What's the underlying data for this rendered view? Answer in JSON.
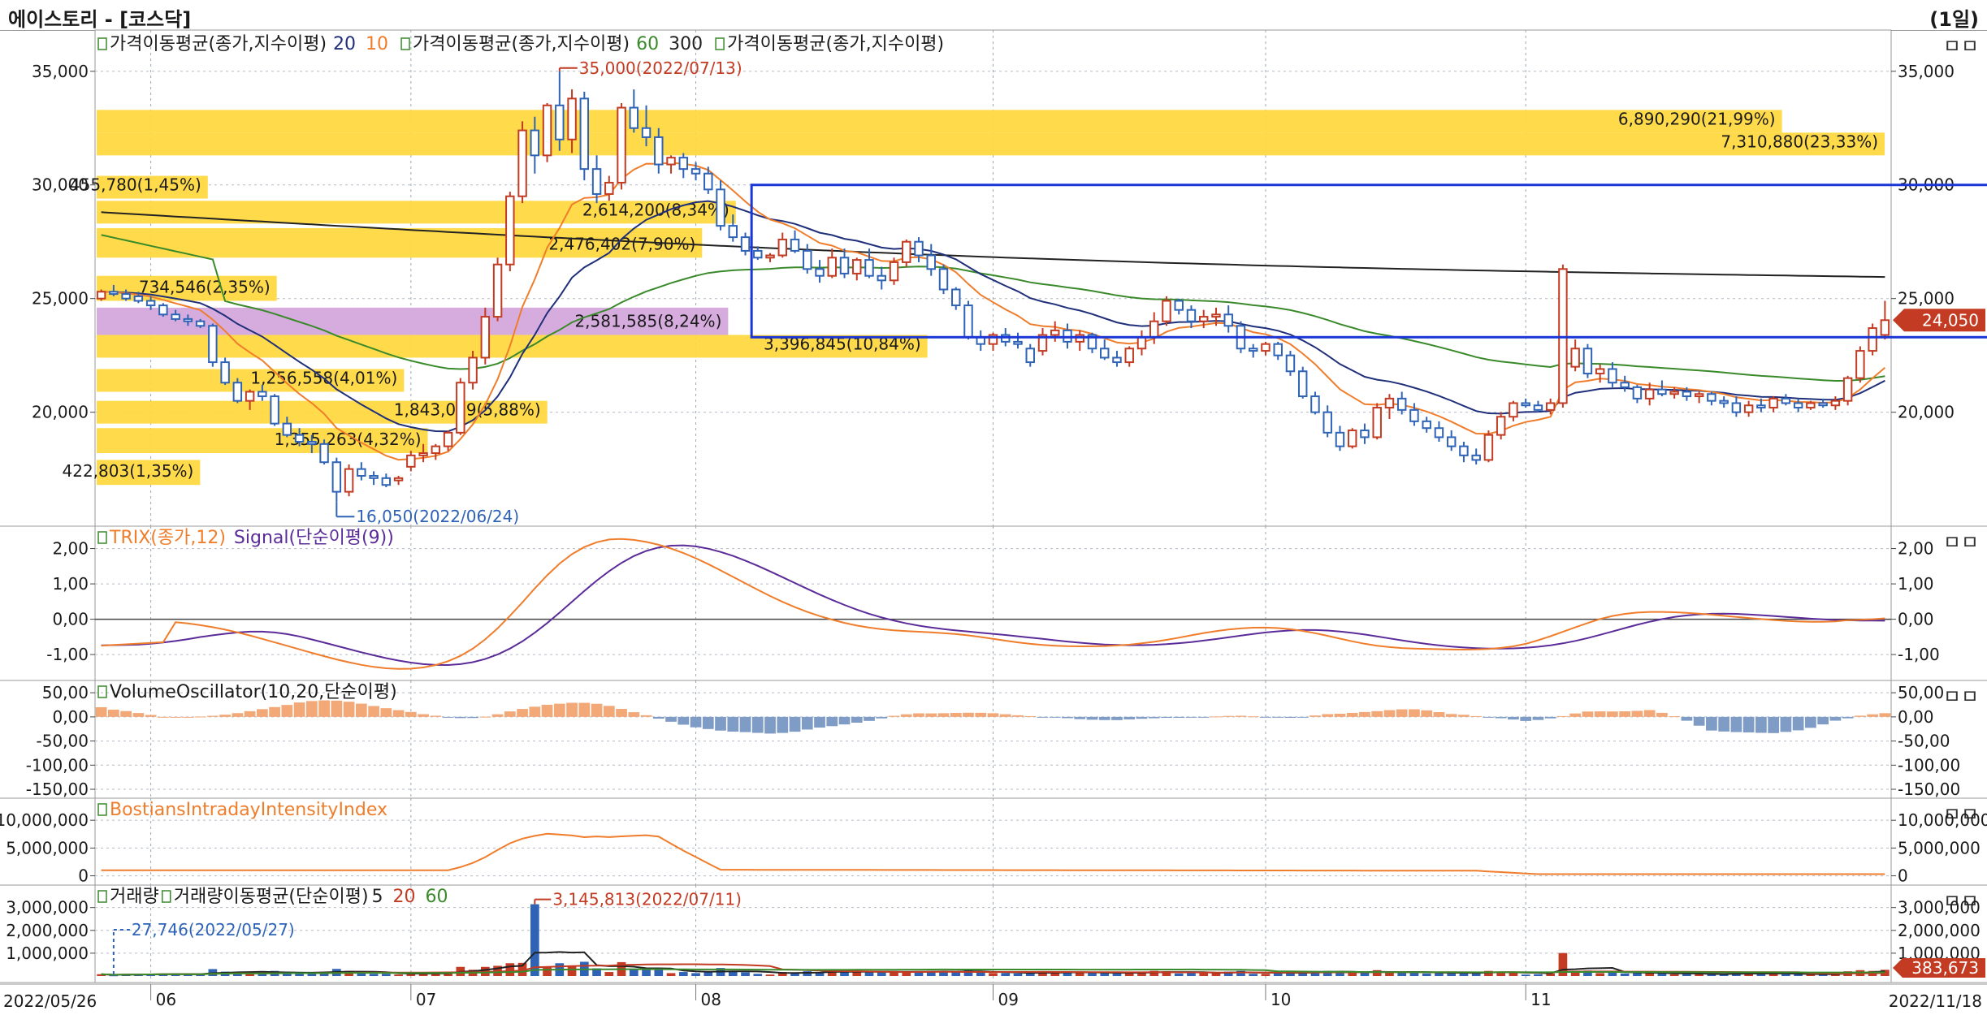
{
  "window": {
    "title": "에이스토리 - [코스닥]",
    "period": "(1일)"
  },
  "panel_controls": "ㅁㅁ",
  "colors": {
    "up": "#c23b22",
    "down": "#2f63b6",
    "ma20": "#1f2f7a",
    "ma10": "#ef7d2b",
    "ma60": "#3a8a2b",
    "ma300": "#222222",
    "trix": "#ef7d2b",
    "signal": "#5b2c99",
    "vo_pos": "#f3a877",
    "vo_neg": "#7f9cc6",
    "biii": "#ef7d2b",
    "profile": "#ffd840",
    "profile_hl": "#d4a8dc",
    "box": "#1a36d6",
    "label_bg": "#c23b22"
  },
  "chart_data": [
    {
      "type": "candlestick",
      "name": "price",
      "legend": [
        {
          "text": "가격이동평균(종가,지수이평)",
          "params": [
            {
              "text": "20",
              "color": "#1f2f7a"
            },
            {
              "text": "10",
              "color": "#ef7d2b"
            }
          ]
        },
        {
          "text": "가격이동평균(종가,지수이평)",
          "params": [
            {
              "text": "60",
              "color": "#3a8a2b"
            },
            {
              "text": "300",
              "color": "#222222"
            }
          ]
        },
        {
          "text": "가격이동평균(종가,지수이평)",
          "params": []
        }
      ],
      "yticks": [
        "35,000",
        "30,000",
        "25,000",
        "20,000"
      ],
      "yvalues": [
        35000,
        30000,
        25000,
        20000
      ],
      "ylim": [
        15200,
        36600
      ],
      "last_price": "24,050",
      "candles": [
        [
          25000,
          25400,
          24900,
          25300
        ],
        [
          25300,
          25600,
          25100,
          25200
        ],
        [
          25200,
          25400,
          24900,
          25000
        ],
        [
          25100,
          25300,
          24800,
          24900
        ],
        [
          24900,
          25100,
          24500,
          24700
        ],
        [
          24700,
          24800,
          24200,
          24300
        ],
        [
          24300,
          24500,
          24000,
          24100
        ],
        [
          24100,
          24300,
          23800,
          24000
        ],
        [
          24000,
          24100,
          23700,
          23800
        ],
        [
          23800,
          23900,
          22000,
          22200
        ],
        [
          22200,
          22400,
          21200,
          21300
        ],
        [
          21300,
          21500,
          20400,
          20500
        ],
        [
          20500,
          21000,
          20100,
          20900
        ],
        [
          20900,
          21200,
          20500,
          20700
        ],
        [
          20700,
          20800,
          19400,
          19500
        ],
        [
          19500,
          19800,
          18900,
          19000
        ],
        [
          19000,
          19300,
          18500,
          18700
        ],
        [
          18700,
          19000,
          18200,
          18600
        ],
        [
          18600,
          18800,
          17700,
          17800
        ],
        [
          17800,
          18000,
          16050,
          16500
        ],
        [
          16500,
          17700,
          16300,
          17500
        ],
        [
          17500,
          17800,
          17000,
          17200
        ],
        [
          17200,
          17400,
          16800,
          17100
        ],
        [
          17100,
          17300,
          16700,
          16800
        ],
        [
          17000,
          17200,
          16800,
          17100
        ],
        [
          17600,
          18300,
          17400,
          18100
        ],
        [
          18100,
          18600,
          17800,
          18200
        ],
        [
          18200,
          18600,
          17900,
          18500
        ],
        [
          18500,
          19200,
          18300,
          19100
        ],
        [
          19100,
          21500,
          19000,
          21300
        ],
        [
          21300,
          22700,
          21000,
          22400
        ],
        [
          22400,
          24600,
          22100,
          24200
        ],
        [
          24200,
          26800,
          24000,
          26500
        ],
        [
          26500,
          29700,
          26200,
          29500
        ],
        [
          29500,
          32800,
          29200,
          32400
        ],
        [
          32400,
          33000,
          30500,
          31300
        ],
        [
          31300,
          33600,
          31000,
          33500
        ],
        [
          33500,
          35000,
          31500,
          32000
        ],
        [
          32000,
          34200,
          31400,
          33800
        ],
        [
          33800,
          34100,
          30200,
          30700
        ],
        [
          30700,
          31300,
          29200,
          29600
        ],
        [
          29600,
          30400,
          29300,
          30100
        ],
        [
          30100,
          33600,
          29800,
          33400
        ],
        [
          33400,
          34200,
          32300,
          32500
        ],
        [
          32500,
          33500,
          31700,
          32100
        ],
        [
          32100,
          32500,
          30500,
          30900
        ],
        [
          30900,
          31300,
          30500,
          31200
        ],
        [
          31200,
          31400,
          30300,
          30700
        ],
        [
          30700,
          31000,
          30200,
          30500
        ],
        [
          30500,
          30800,
          29600,
          29800
        ],
        [
          29800,
          30200,
          28000,
          28200
        ],
        [
          28200,
          28700,
          27500,
          27700
        ],
        [
          27700,
          27900,
          26900,
          27100
        ],
        [
          27100,
          27300,
          26700,
          26800
        ],
        [
          26800,
          27000,
          26600,
          26900
        ],
        [
          26900,
          27900,
          26800,
          27600
        ],
        [
          27600,
          28000,
          27000,
          27100
        ],
        [
          27100,
          27400,
          26100,
          26300
        ],
        [
          26300,
          26700,
          25700,
          26000
        ],
        [
          26000,
          27200,
          25900,
          26800
        ],
        [
          26800,
          27200,
          25900,
          26100
        ],
        [
          26100,
          26800,
          25800,
          26700
        ],
        [
          26700,
          27200,
          25900,
          26000
        ],
        [
          26000,
          26400,
          25400,
          25800
        ],
        [
          25800,
          26800,
          25600,
          26600
        ],
        [
          26600,
          27600,
          26400,
          27500
        ],
        [
          27500,
          27700,
          26600,
          26900
        ],
        [
          26900,
          27400,
          26000,
          26300
        ],
        [
          26300,
          26500,
          25200,
          25400
        ],
        [
          25400,
          25500,
          24500,
          24700
        ],
        [
          24700,
          24900,
          23200,
          23300
        ],
        [
          23300,
          23600,
          22700,
          23000
        ],
        [
          23000,
          23500,
          22700,
          23400
        ],
        [
          23400,
          23700,
          22900,
          23100
        ],
        [
          23100,
          23500,
          22800,
          23000
        ],
        [
          22800,
          23000,
          22000,
          22200
        ],
        [
          22700,
          23700,
          22500,
          23400
        ],
        [
          23400,
          24000,
          23100,
          23600
        ],
        [
          23600,
          23900,
          22800,
          23100
        ],
        [
          23100,
          23600,
          22700,
          23400
        ],
        [
          23400,
          23500,
          22600,
          22800
        ],
        [
          22800,
          23200,
          22300,
          22400
        ],
        [
          22400,
          22700,
          22000,
          22200
        ],
        [
          22200,
          22900,
          22000,
          22800
        ],
        [
          22800,
          23600,
          22500,
          23300
        ],
        [
          23300,
          24400,
          23000,
          24000
        ],
        [
          24000,
          25100,
          23800,
          24900
        ],
        [
          24900,
          25000,
          24300,
          24500
        ],
        [
          24500,
          24700,
          23700,
          24000
        ],
        [
          24000,
          24500,
          23700,
          24200
        ],
        [
          24200,
          24600,
          23800,
          24300
        ],
        [
          24300,
          24700,
          23500,
          23800
        ],
        [
          23800,
          24000,
          22600,
          22800
        ],
        [
          22800,
          23000,
          22400,
          22700
        ],
        [
          22700,
          23100,
          22500,
          23000
        ],
        [
          23000,
          23100,
          22300,
          22500
        ],
        [
          22500,
          22700,
          21600,
          21800
        ],
        [
          21800,
          22000,
          20600,
          20700
        ],
        [
          20700,
          20900,
          19900,
          20000
        ],
        [
          20000,
          20300,
          18900,
          19100
        ],
        [
          19100,
          19400,
          18300,
          18500
        ],
        [
          18500,
          19300,
          18400,
          19200
        ],
        [
          19200,
          19500,
          18600,
          18900
        ],
        [
          18900,
          20400,
          18800,
          20200
        ],
        [
          20200,
          20800,
          19700,
          20600
        ],
        [
          20600,
          20900,
          19900,
          20100
        ],
        [
          20100,
          20400,
          19400,
          19600
        ],
        [
          19600,
          19800,
          19100,
          19300
        ],
        [
          19300,
          19600,
          18700,
          18900
        ],
        [
          18900,
          19200,
          18300,
          18500
        ],
        [
          18500,
          18700,
          17800,
          18100
        ],
        [
          18100,
          18400,
          17700,
          17900
        ],
        [
          17900,
          19200,
          17800,
          19000
        ],
        [
          19000,
          20000,
          18800,
          19800
        ],
        [
          19800,
          20500,
          19600,
          20400
        ],
        [
          20400,
          20600,
          20200,
          20300
        ],
        [
          20300,
          20500,
          20000,
          20100
        ],
        [
          20100,
          20600,
          19900,
          20400
        ],
        [
          20400,
          26500,
          20200,
          26300
        ],
        [
          22000,
          23200,
          21800,
          22800
        ],
        [
          22800,
          23000,
          21500,
          21700
        ],
        [
          21700,
          22100,
          21300,
          21900
        ],
        [
          21900,
          22200,
          21100,
          21300
        ],
        [
          21300,
          21600,
          20900,
          21100
        ],
        [
          21100,
          21200,
          20400,
          20600
        ],
        [
          20600,
          21300,
          20300,
          21000
        ],
        [
          21000,
          21400,
          20700,
          20800
        ],
        [
          20800,
          21100,
          20600,
          20900
        ],
        [
          20900,
          21100,
          20500,
          20700
        ],
        [
          20700,
          20900,
          20400,
          20800
        ],
        [
          20800,
          20900,
          20300,
          20500
        ],
        [
          20500,
          20700,
          20200,
          20400
        ],
        [
          20400,
          20700,
          19800,
          20000
        ],
        [
          20000,
          20500,
          19800,
          20300
        ],
        [
          20300,
          20600,
          20000,
          20200
        ],
        [
          20200,
          20700,
          20000,
          20600
        ],
        [
          20600,
          20800,
          20300,
          20400
        ],
        [
          20400,
          20600,
          20000,
          20200
        ],
        [
          20200,
          20500,
          20100,
          20400
        ],
        [
          20400,
          20600,
          20200,
          20300
        ],
        [
          20300,
          20700,
          20100,
          20500
        ],
        [
          20500,
          21600,
          20300,
          21500
        ],
        [
          21500,
          22900,
          21300,
          22700
        ],
        [
          22700,
          23900,
          22500,
          23700
        ],
        [
          23400,
          24900,
          23200,
          24050
        ]
      ],
      "annotations": [
        {
          "text": "35,000(2022/07/13)",
          "index": 37,
          "value": 35000,
          "kind": "high"
        },
        {
          "text": "16,050(2022/06/24)",
          "index": 19,
          "value": 16050,
          "kind": "low"
        }
      ],
      "volume_profile": [
        {
          "low": 32300,
          "high": 33300,
          "text": "6,890,290(21,99%)",
          "pct": 21.99
        },
        {
          "low": 31300,
          "high": 32300,
          "text": "7,310,880(23,33%)",
          "pct": 23.33
        },
        {
          "low": 29400,
          "high": 30400,
          "text": "455,780(1,45%)",
          "pct": 1.45
        },
        {
          "low": 28300,
          "high": 29300,
          "text": "2,614,200(8,34%)",
          "pct": 8.34
        },
        {
          "low": 26800,
          "high": 28100,
          "text": "2,476,402(7,90%)",
          "pct": 7.9
        },
        {
          "low": 24900,
          "high": 26000,
          "text": "734,546(2,35%)",
          "pct": 2.35
        },
        {
          "low": 23400,
          "high": 24600,
          "text": "2,581,585(8,24%)",
          "pct": 8.24,
          "highlight": true
        },
        {
          "low": 22400,
          "high": 23400,
          "text": "3,396,845(10,84%)",
          "pct": 10.84
        },
        {
          "low": 20900,
          "high": 21900,
          "text": "1,256,558(4,01%)",
          "pct": 4.01
        },
        {
          "low": 19500,
          "high": 20500,
          "text": "1,843,059(5,88%)",
          "pct": 5.88
        },
        {
          "low": 18200,
          "high": 19300,
          "text": "1,355,263(4,32%)",
          "pct": 4.32
        },
        {
          "low": 16800,
          "high": 17900,
          "text": "422,803(1,35%)",
          "pct": 1.35
        }
      ],
      "box": {
        "start_index": 53,
        "end_index": 152,
        "low": 23300,
        "high": 30000
      }
    },
    {
      "type": "line",
      "name": "trix",
      "legend": [
        {
          "text": "TRIX(종가,12)",
          "color": "#ef7d2b"
        },
        {
          "text": "Signal(단순이평(9))",
          "color": "#5b2c99"
        }
      ],
      "yticks": [
        "2,00",
        "1,00",
        "0,00",
        "-1,00"
      ],
      "yvalues": [
        2,
        1,
        0,
        -1
      ],
      "ylim": [
        -1.55,
        2.45
      ]
    },
    {
      "type": "bar",
      "name": "volume_oscillator",
      "legend": [
        {
          "text": "VolumeOscillator(10,20,단순이평)",
          "color": "#1a1a1a"
        }
      ],
      "yticks": [
        "50,00",
        "0,00",
        "-50,00",
        "-100,00",
        "-150,00"
      ],
      "yvalues": [
        50,
        0,
        -50,
        -100,
        -150
      ],
      "ylim": [
        -155,
        62
      ]
    },
    {
      "type": "line",
      "name": "biii",
      "legend": [
        {
          "text": "BostiansIntradayIntensityIndex",
          "color": "#ef7d2b"
        }
      ],
      "yticks_left": [
        "10,000,000",
        "5,000,000",
        "0"
      ],
      "yticks_right": [
        "10,000,000",
        "5,000,000",
        "0"
      ],
      "yvalues": [
        10000000,
        5000000,
        0
      ],
      "ylim": [
        -500000,
        12800000
      ]
    },
    {
      "type": "bar",
      "name": "volume",
      "legend": [
        {
          "text": "거래량",
          "color": "#1a1a1a"
        },
        {
          "text": "거래량이동평균(단순이평)",
          "color": "#1a1a1a"
        },
        {
          "text": "5",
          "color": "#222222"
        },
        {
          "text": "20",
          "color": "#c23b22"
        },
        {
          "text": "60",
          "color": "#3a8a2b"
        }
      ],
      "yticks": [
        "3,000,000",
        "2,000,000",
        "1,000,000"
      ],
      "yvalues": [
        3000000,
        2000000,
        1000000
      ],
      "ylim": [
        0,
        3700000
      ],
      "last_volume": "383,673",
      "annotations": [
        {
          "text": "3,145,813(2022/07/11)",
          "index": 35,
          "value": 3145813,
          "kind": "high"
        },
        {
          "text": "27,746(2022/05/27)",
          "index": 1,
          "value": 27746,
          "kind": "low"
        }
      ]
    }
  ],
  "x_axis": {
    "start_date": "2022/05/26",
    "end_date": "2022/11/18",
    "months": [
      {
        "label": "06",
        "index": 4
      },
      {
        "label": "07",
        "index": 25
      },
      {
        "label": "08",
        "index": 48
      },
      {
        "label": "09",
        "index": 72
      },
      {
        "label": "10",
        "index": 94
      },
      {
        "label": "11",
        "index": 115
      }
    ]
  }
}
